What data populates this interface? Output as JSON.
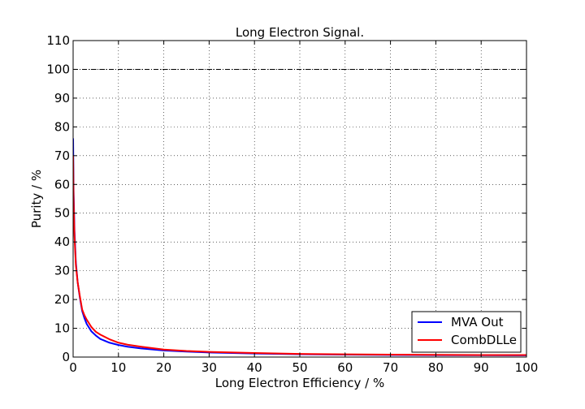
{
  "chart_data": {
    "type": "line",
    "title": "Long Electron Signal.",
    "xlabel": "Long Electron Efficiency / %",
    "ylabel": "Purity / %",
    "xlim": [
      0,
      100
    ],
    "ylim": [
      0,
      110
    ],
    "xticks": [
      0,
      10,
      20,
      30,
      40,
      50,
      60,
      70,
      80,
      90,
      100
    ],
    "yticks": [
      0,
      10,
      20,
      30,
      40,
      50,
      60,
      70,
      80,
      90,
      100,
      110
    ],
    "grid": true,
    "reference_line": {
      "y": 100,
      "style": "dash-dot",
      "color": "#000000"
    },
    "legend_position": "lower-right",
    "series": [
      {
        "name": "MVA Out",
        "color": "#0000ff",
        "x": [
          0,
          0.1,
          0.3,
          0.6,
          1,
          1.5,
          2,
          2.5,
          3,
          4,
          5,
          6,
          8,
          10,
          12,
          15,
          20,
          25,
          30,
          40,
          50,
          60,
          70,
          80,
          90,
          100
        ],
        "y": [
          76,
          58,
          44,
          33,
          26,
          20.5,
          16,
          13.5,
          11.5,
          9,
          7.5,
          6.3,
          5.0,
          4.2,
          3.6,
          3.0,
          2.3,
          1.9,
          1.6,
          1.25,
          1.0,
          0.85,
          0.75,
          0.68,
          0.63,
          0.6
        ]
      },
      {
        "name": "CombDLLe",
        "color": "#ff0000",
        "x": [
          0,
          0.1,
          0.3,
          0.6,
          1,
          1.5,
          2,
          2.5,
          3,
          4,
          5,
          6,
          8,
          10,
          12,
          15,
          20,
          25,
          30,
          40,
          50,
          60,
          70,
          80,
          90,
          100
        ],
        "y": [
          70,
          55,
          42,
          32,
          26,
          21,
          16.5,
          14.5,
          13,
          10.5,
          8.8,
          7.8,
          6.2,
          5.0,
          4.3,
          3.6,
          2.6,
          2.1,
          1.8,
          1.4,
          1.1,
          0.95,
          0.85,
          0.78,
          0.72,
          0.7
        ]
      }
    ]
  }
}
